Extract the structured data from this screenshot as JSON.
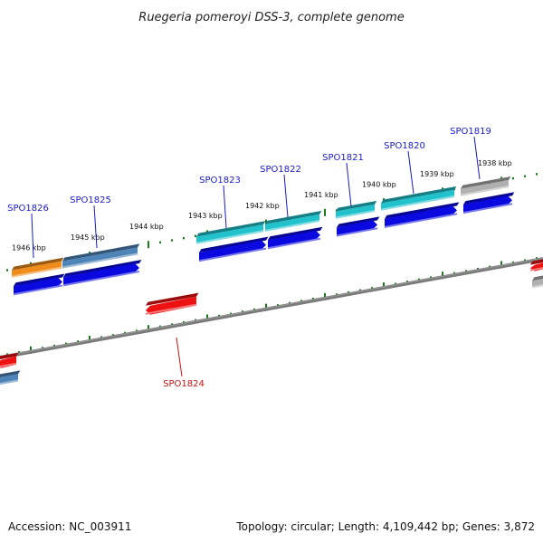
{
  "title": "Ruegeria pomeroyi DSS-3, complete genome",
  "footer": {
    "accession": "Accession: NC_003911",
    "summary": "Topology: circular; Length: 4,109,442 bp; Genes: 3,872"
  },
  "colors": {
    "backbone": "#7a7a7a",
    "tick": "#1a7a1a",
    "label_forward": "#1a1acc",
    "label_reverse": "#cc1111",
    "cds": "#0a0ae0",
    "reverse_gene": "#ee1111",
    "cog_cyan": "#22c2cc",
    "cog_steelblue": "#4f84b8",
    "cog_orange": "#f08c1c",
    "cog_gray": "#b0b0b0"
  },
  "kbp_labels": [
    "1946 kbp",
    "1945 kbp",
    "1944 kbp",
    "1943 kbp",
    "1942 kbp",
    "1941 kbp",
    "1940 kbp",
    "1939 kbp",
    "1938 kbp"
  ],
  "genes": [
    {
      "label": "SPO1826",
      "strand": "forward",
      "category": "cog_orange"
    },
    {
      "label": "SPO1825",
      "strand": "forward",
      "category": "cog_steelblue"
    },
    {
      "label": "SPO1824",
      "strand": "reverse",
      "category": "reverse_gene"
    },
    {
      "label": "SPO1823",
      "strand": "forward",
      "category": "cog_cyan"
    },
    {
      "label": "SPO1822",
      "strand": "forward",
      "category": "cog_cyan"
    },
    {
      "label": "SPO1821",
      "strand": "forward",
      "category": "cog_cyan"
    },
    {
      "label": "SPO1820",
      "strand": "forward",
      "category": "cog_cyan"
    },
    {
      "label": "SPO1819",
      "strand": "forward",
      "category": "cog_gray"
    }
  ]
}
